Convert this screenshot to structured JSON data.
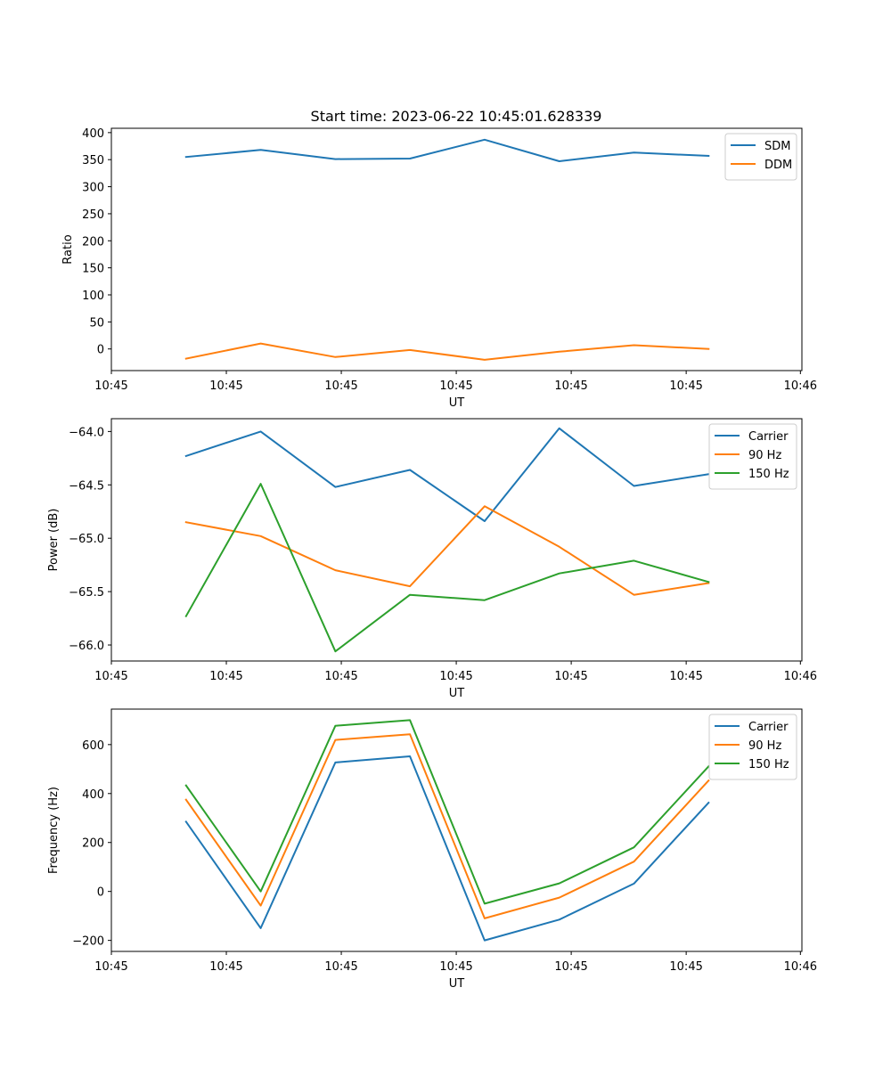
{
  "figure": {
    "title": "Start time: 2023-06-22 10:45:01.628339"
  },
  "chart_data": [
    {
      "type": "line",
      "title": "Start time: 2023-06-22 10:45:01.628339",
      "xlabel": "UT",
      "ylabel": "Ratio",
      "x_tick_labels": [
        "10:45",
        "10:45",
        "10:45",
        "10:45",
        "10:45",
        "10:45",
        "10:46"
      ],
      "y_ticks": [
        0,
        50,
        100,
        150,
        200,
        250,
        300,
        350,
        400
      ],
      "y_tick_labels": [
        "0",
        "50",
        "100",
        "150",
        "200",
        "250",
        "300",
        "350",
        "400"
      ],
      "ylim": [
        -40,
        408
      ],
      "xlim": [
        0,
        9.25
      ],
      "x": [
        1,
        2,
        3,
        4,
        5,
        6,
        7,
        8
      ],
      "series": [
        {
          "name": "SDM",
          "color": "#1f77b4",
          "values": [
            355,
            368,
            351,
            352,
            387,
            347,
            363,
            357
          ]
        },
        {
          "name": "DDM",
          "color": "#ff7f0e",
          "values": [
            -18,
            10,
            -15,
            -2,
            -20,
            -5,
            7,
            0
          ]
        }
      ],
      "legend": "top-right",
      "grid": false
    },
    {
      "type": "line",
      "xlabel": "UT",
      "ylabel": "Power (dB)",
      "x_tick_labels": [
        "10:45",
        "10:45",
        "10:45",
        "10:45",
        "10:45",
        "10:45",
        "10:46"
      ],
      "y_ticks": [
        -64.0,
        -64.5,
        -65.0,
        -65.5,
        -66.0
      ],
      "y_tick_labels": [
        "−64.0",
        "−64.5",
        "−65.0",
        "−65.5",
        "−66.0"
      ],
      "ylim": [
        -66.15,
        -63.88
      ],
      "xlim": [
        0,
        9.25
      ],
      "x": [
        1,
        2,
        3,
        4,
        5,
        6,
        7,
        8
      ],
      "series": [
        {
          "name": "Carrier",
          "color": "#1f77b4",
          "values": [
            -64.23,
            -64.0,
            -64.52,
            -64.36,
            -64.84,
            -63.97,
            -64.51,
            -64.4
          ]
        },
        {
          "name": "90 Hz",
          "color": "#ff7f0e",
          "values": [
            -64.85,
            -64.98,
            -65.3,
            -65.45,
            -64.7,
            -65.08,
            -65.53,
            -65.42
          ]
        },
        {
          "name": "150 Hz",
          "color": "#2ca02c",
          "values": [
            -65.73,
            -64.49,
            -66.06,
            -65.53,
            -65.58,
            -65.33,
            -65.21,
            -65.41
          ]
        }
      ],
      "legend": "top-right",
      "grid": false
    },
    {
      "type": "line",
      "xlabel": "UT",
      "ylabel": "Frequency (Hz)",
      "x_tick_labels": [
        "10:45",
        "10:45",
        "10:45",
        "10:45",
        "10:45",
        "10:45",
        "10:46"
      ],
      "y_ticks": [
        -200,
        0,
        200,
        400,
        600
      ],
      "y_tick_labels": [
        "−200",
        "0",
        "200",
        "400",
        "600"
      ],
      "ylim": [
        -245,
        745
      ],
      "xlim": [
        0,
        9.25
      ],
      "x": [
        1,
        2,
        3,
        4,
        5,
        6,
        7,
        8
      ],
      "series": [
        {
          "name": "Carrier",
          "color": "#1f77b4",
          "values": [
            285,
            -150,
            527,
            552,
            -200,
            -115,
            32,
            363
          ]
        },
        {
          "name": "90 Hz",
          "color": "#ff7f0e",
          "values": [
            375,
            -58,
            619,
            642,
            -110,
            -25,
            122,
            453
          ]
        },
        {
          "name": "150 Hz",
          "color": "#2ca02c",
          "values": [
            433,
            0,
            677,
            700,
            -50,
            33,
            180,
            511
          ]
        }
      ],
      "legend": "top-right",
      "grid": false
    }
  ]
}
